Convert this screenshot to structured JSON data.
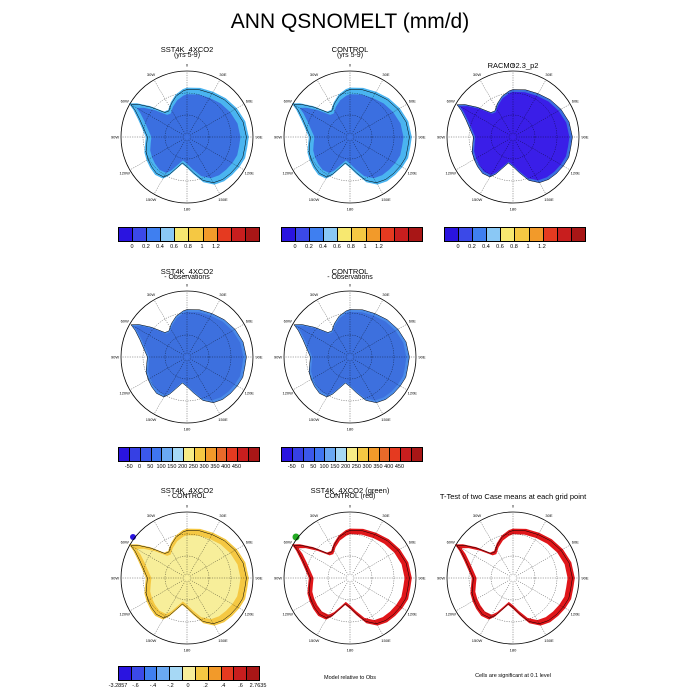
{
  "title": "ANN QSNOMELT (mm/d)",
  "lon_labels": [
    "0",
    "30E",
    "60E",
    "90E",
    "120E",
    "150E",
    "180",
    "150W",
    "120W",
    "90W",
    "60W",
    "30W"
  ],
  "panels": [
    {
      "id": "p1",
      "title": "SST4K_4XCO2",
      "subtitle": "(yrs 5-9)",
      "fill": "#3b6fe0",
      "ring": true,
      "ringColors": [
        "#4ab4f0",
        "#f7e070",
        "#f29a2a",
        "#e53a20",
        "#b51a1a"
      ]
    },
    {
      "id": "p2",
      "title": "CONTROL",
      "subtitle": "(yrs 5-9)",
      "fill": "#3b6fe0",
      "ring": true,
      "ringColors": [
        "#4ab4f0",
        "#f7e070",
        "#f29a2a",
        "#e53a20"
      ]
    },
    {
      "id": "p3",
      "title": "RACMO2.3_p2",
      "subtitle": "",
      "fill": "#3a1ee8",
      "ring": false,
      "ringColors": [
        "#3b6fe0"
      ]
    },
    {
      "id": "p4",
      "title": "SST4K_4XCO2",
      "subtitle": "- Observations",
      "fill": "#3d70de",
      "ring": false,
      "ringColors": [
        "#4a8ae8"
      ]
    },
    {
      "id": "p5",
      "title": "CONTROL",
      "subtitle": "- Observations",
      "fill": "#3d70de",
      "ring": false,
      "ringColors": [
        "#4a8ae8"
      ]
    },
    {
      "id": "p6",
      "title": "SST4K_4XCO2",
      "subtitle": "- CONTROL",
      "fill": "#f7ee9a",
      "ring": true,
      "ringColors": [
        "#f5c843",
        "#e53a20",
        "#b51a1a"
      ]
    },
    {
      "id": "p7",
      "title": "SST4K_4XCO2 (green)",
      "subtitle": "CONTROL (red)",
      "fill": "#ffffff",
      "ring": true,
      "ringColors": [
        "#e0161a"
      ]
    },
    {
      "id": "p8",
      "title": "T-Test of two Case means at each grid point",
      "subtitle": "",
      "fill": "#ffffff",
      "ring": true,
      "ringColors": [
        "#e0161a"
      ]
    }
  ],
  "colorbars": [
    {
      "id": "cb1",
      "colors": [
        "#2a14e0",
        "#3b49e8",
        "#3f7ff0",
        "#8ac8f5",
        "#f7e870",
        "#f5c843",
        "#f29a2a",
        "#e53a20",
        "#c81e1e",
        "#a81616"
      ],
      "ticks": [
        "0",
        "0.2",
        "0.4",
        "0.6",
        "0.8",
        "1",
        "1.2"
      ]
    },
    {
      "id": "cb2",
      "colors": [
        "#2a14e0",
        "#3b49e8",
        "#3f7ff0",
        "#8ac8f5",
        "#f7e870",
        "#f5c843",
        "#f29a2a",
        "#e53a20",
        "#c81e1e",
        "#a81616"
      ],
      "ticks": [
        "0",
        "0.2",
        "0.4",
        "0.6",
        "0.8",
        "1",
        "1.2"
      ]
    },
    {
      "id": "cb3",
      "colors": [
        "#2a14e0",
        "#3b49e8",
        "#3f7ff0",
        "#8ac8f5",
        "#f7e870",
        "#f5c843",
        "#f29a2a",
        "#e53a20",
        "#c81e1e",
        "#a81616"
      ],
      "ticks": [
        "0",
        "0.2",
        "0.4",
        "0.6",
        "0.8",
        "1",
        "1.2"
      ]
    },
    {
      "id": "cb4",
      "colors": [
        "#2a14e0",
        "#3640e4",
        "#3b58ea",
        "#3f75f0",
        "#6aa8f2",
        "#a6d8f5",
        "#f7ec86",
        "#f5c843",
        "#f29a2a",
        "#e86a2a",
        "#e53a20",
        "#c81e1e",
        "#a81616"
      ],
      "ticks": [
        "-50",
        "0",
        "50",
        "100",
        "150",
        "200",
        "250",
        "300",
        "350",
        "400",
        "450"
      ]
    },
    {
      "id": "cb5",
      "colors": [
        "#2a14e0",
        "#3640e4",
        "#3b58ea",
        "#3f75f0",
        "#6aa8f2",
        "#a6d8f5",
        "#f7ec86",
        "#f5c843",
        "#f29a2a",
        "#e86a2a",
        "#e53a20",
        "#c81e1e",
        "#a81616"
      ],
      "ticks": [
        "-50",
        "0",
        "50",
        "100",
        "150",
        "200",
        "250",
        "300",
        "350",
        "400",
        "450"
      ]
    },
    {
      "id": "cb6",
      "colors": [
        "#2a14e0",
        "#3b49e8",
        "#3f7ff0",
        "#6aa8f2",
        "#a6d8f5",
        "#f7ee9a",
        "#f5c843",
        "#f29a2a",
        "#e53a20",
        "#c81e1e",
        "#a81616"
      ],
      "ticks": [
        "-3.2857",
        "-.6",
        "-.4",
        "-.2",
        "0",
        ".2",
        ".4",
        ".6",
        "2.7635"
      ]
    }
  ],
  "notes": {
    "model_relative": "Model relative to Obs",
    "significance": "Cells are significant at 0.1 level"
  }
}
